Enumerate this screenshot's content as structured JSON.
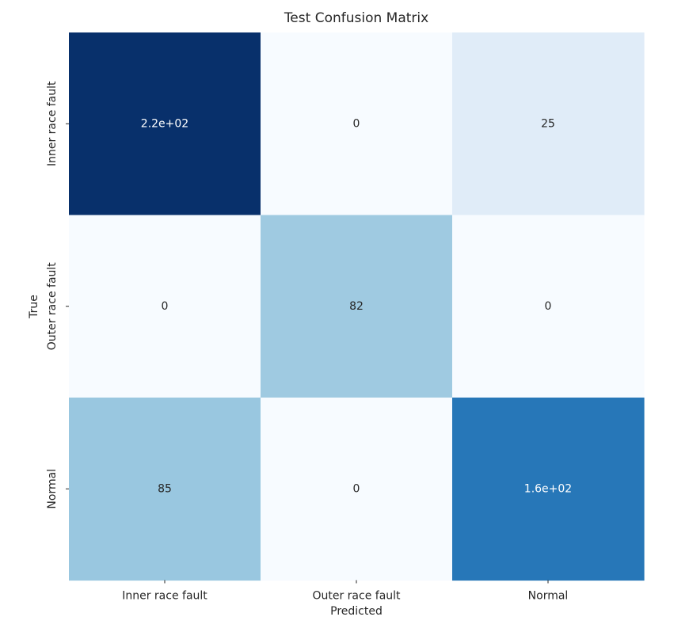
{
  "chart_data": {
    "type": "heatmap",
    "title": "Test Confusion Matrix",
    "xlabel": "Predicted",
    "ylabel": "True",
    "x_categories": [
      "Inner race fault",
      "Outer race fault",
      "Normal"
    ],
    "y_categories": [
      "Inner race fault",
      "Outer race fault",
      "Normal"
    ],
    "values": [
      [
        220,
        0,
        25
      ],
      [
        0,
        82,
        0
      ],
      [
        85,
        0,
        160
      ]
    ],
    "labels": [
      [
        "2.2e+02",
        "0",
        "25"
      ],
      [
        "0",
        "82",
        "0"
      ],
      [
        "85",
        "0",
        "1.6e+02"
      ]
    ],
    "colormap": "Blues",
    "colorbar": false
  }
}
